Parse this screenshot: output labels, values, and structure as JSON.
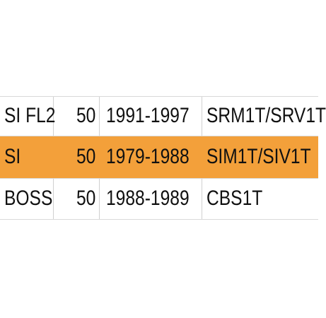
{
  "table": {
    "rows": [
      {
        "model": "SI FL2",
        "number": "50",
        "years": "1991-1997",
        "code": "SRM1T/SRV1T",
        "highlighted": false
      },
      {
        "model": "SI",
        "number": "50",
        "years": "1979-1988",
        "code": "SIM1T/SIV1T",
        "highlighted": true
      },
      {
        "model": "BOSS",
        "number": "50",
        "years": "1988-1989",
        "code": "CBS1T",
        "highlighted": false
      }
    ]
  },
  "colors": {
    "highlight": "#f3a03a",
    "text": "#111111",
    "divider": "#d9d9d9"
  }
}
